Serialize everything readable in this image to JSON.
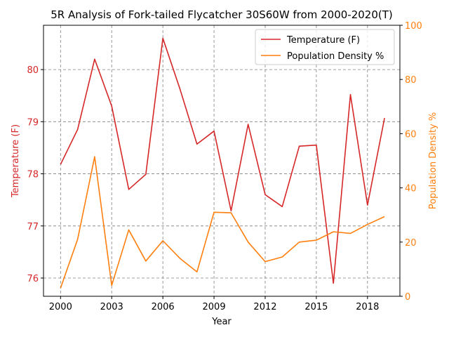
{
  "chart_data": {
    "type": "line",
    "title": "5R Analysis of Fork-tailed Flycatcher 30S60W from 2000-2020(T)",
    "xlabel": "Year",
    "ylabel_left": "Temperature (F)",
    "ylabel_right": "Population Density %",
    "x": [
      2000,
      2001,
      2002,
      2003,
      2004,
      2005,
      2006,
      2007,
      2008,
      2009,
      2010,
      2011,
      2012,
      2013,
      2014,
      2015,
      2016,
      2017,
      2018,
      2019
    ],
    "x_ticks": [
      "2000",
      "2003",
      "2006",
      "2009",
      "2012",
      "2015",
      "2018"
    ],
    "y_left_ticks": [
      "76",
      "77",
      "78",
      "79",
      "80"
    ],
    "y_right_ticks": [
      "0",
      "20",
      "40",
      "60",
      "80",
      "100"
    ],
    "xlim": [
      1999.0,
      2019.9
    ],
    "ylim_left": [
      75.65,
      80.85
    ],
    "ylim_right": [
      0,
      100
    ],
    "grid": true,
    "legend_position": "top-right",
    "colors": {
      "temperature": "#d62728",
      "population": "#ff7f0e"
    },
    "series": [
      {
        "name": "Temperature (F)",
        "axis": "left",
        "values": [
          78.18,
          78.85,
          80.2,
          79.3,
          77.7,
          77.99,
          80.6,
          79.63,
          78.57,
          78.82,
          77.29,
          78.95,
          77.6,
          77.37,
          78.53,
          78.55,
          75.9,
          79.52,
          77.4,
          79.07
        ]
      },
      {
        "name": "Population Density %",
        "axis": "right",
        "values": [
          3,
          21,
          51.5,
          4,
          24.5,
          13,
          20.5,
          14,
          9,
          31,
          30.8,
          20,
          12.8,
          14.5,
          20,
          20.7,
          23.8,
          23.2,
          26.5,
          29.4
        ]
      }
    ]
  }
}
